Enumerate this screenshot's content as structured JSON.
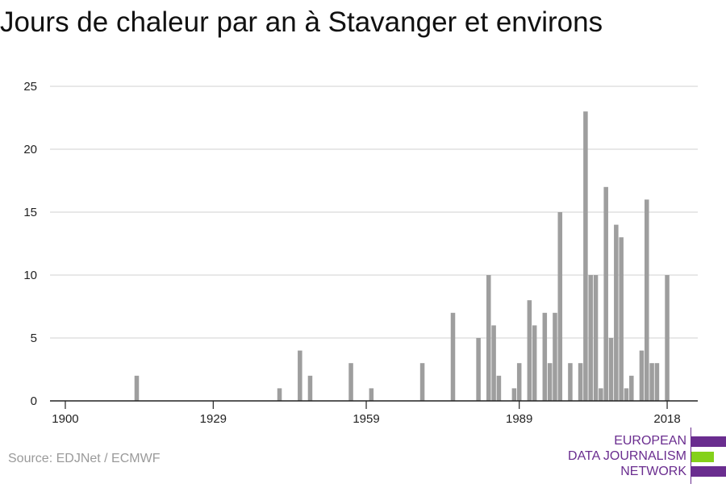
{
  "page": {
    "title": "Jours de chaleur par an à Stavanger et environs",
    "source": "Source: EDJNet / ECMWF"
  },
  "logo": {
    "lines": [
      "EUROPEAN",
      "DATA JOURNALISM",
      "NETWORK"
    ],
    "colors": {
      "purple": "#6a2d8f",
      "green": "#84d11a"
    }
  },
  "chart_data": {
    "type": "bar",
    "title": "",
    "xlabel": "",
    "ylabel": "",
    "xlim": [
      1897,
      2024
    ],
    "ylim": [
      0,
      25
    ],
    "grid": true,
    "legend": "none",
    "x_ticks": [
      1900,
      1929,
      1959,
      1989,
      2018
    ],
    "y_ticks": [
      0,
      5,
      10,
      15,
      20,
      25
    ],
    "bar_color": "#9e9e9e",
    "grid_color": "#d9d9d9",
    "axis_color": "#222222",
    "series": [
      {
        "points": [
          [
            1914,
            2
          ],
          [
            1942,
            1
          ],
          [
            1946,
            4
          ],
          [
            1948,
            2
          ],
          [
            1956,
            3
          ],
          [
            1960,
            1
          ],
          [
            1970,
            3
          ],
          [
            1976,
            7
          ],
          [
            1981,
            5
          ],
          [
            1983,
            10
          ],
          [
            1984,
            6
          ],
          [
            1985,
            2
          ],
          [
            1988,
            1
          ],
          [
            1989,
            3
          ],
          [
            1991,
            8
          ],
          [
            1992,
            6
          ],
          [
            1994,
            7
          ],
          [
            1995,
            3
          ],
          [
            1996,
            7
          ],
          [
            1997,
            15
          ],
          [
            1999,
            3
          ],
          [
            2001,
            3
          ],
          [
            2002,
            23
          ],
          [
            2003,
            10
          ],
          [
            2004,
            10
          ],
          [
            2005,
            1
          ],
          [
            2006,
            17
          ],
          [
            2007,
            5
          ],
          [
            2008,
            14
          ],
          [
            2009,
            13
          ],
          [
            2010,
            1
          ],
          [
            2011,
            2
          ],
          [
            2013,
            4
          ],
          [
            2014,
            16
          ],
          [
            2015,
            3
          ],
          [
            2016,
            3
          ],
          [
            2018,
            10
          ]
        ]
      }
    ]
  }
}
